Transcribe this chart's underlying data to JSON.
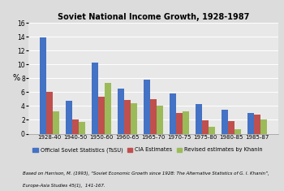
{
  "title": "Soviet National Income Growth, 1928-1987",
  "categories": [
    "1928-40",
    "1940-50",
    "1950-60",
    "1960-65",
    "1965-70",
    "1970-75",
    "1975-80",
    "1980-85",
    "1985-87"
  ],
  "series": {
    "Official Soviet Statistics (TsSU)": [
      13.9,
      4.8,
      10.3,
      6.5,
      7.8,
      5.8,
      4.3,
      3.5,
      3.0
    ],
    "CIA Estimates": [
      6.1,
      2.0,
      5.3,
      4.9,
      5.0,
      3.0,
      1.9,
      1.8,
      2.7
    ],
    "Revised estimates by Khanin": [
      3.2,
      1.7,
      7.3,
      4.4,
      4.1,
      3.2,
      1.0,
      0.6,
      2.0
    ]
  },
  "colors": {
    "Official Soviet Statistics (TsSU)": "#4472C4",
    "CIA Estimates": "#C0504D",
    "Revised estimates by Khanin": "#9BBB59"
  },
  "ylabel": "%",
  "ylim": [
    0,
    16
  ],
  "yticks": [
    0,
    2,
    4,
    6,
    8,
    10,
    12,
    14,
    16
  ],
  "background_color": "#DCDCDC",
  "plot_bg": "#E8E8E8",
  "footnote_line1": "Based on Harrison, M. (1993), “Soviet Economic Growth since 1928: The Alternative Statistics of G. I. Khanin”,",
  "footnote_line2": "Europe-Asia Studies 45(1),  141-167."
}
